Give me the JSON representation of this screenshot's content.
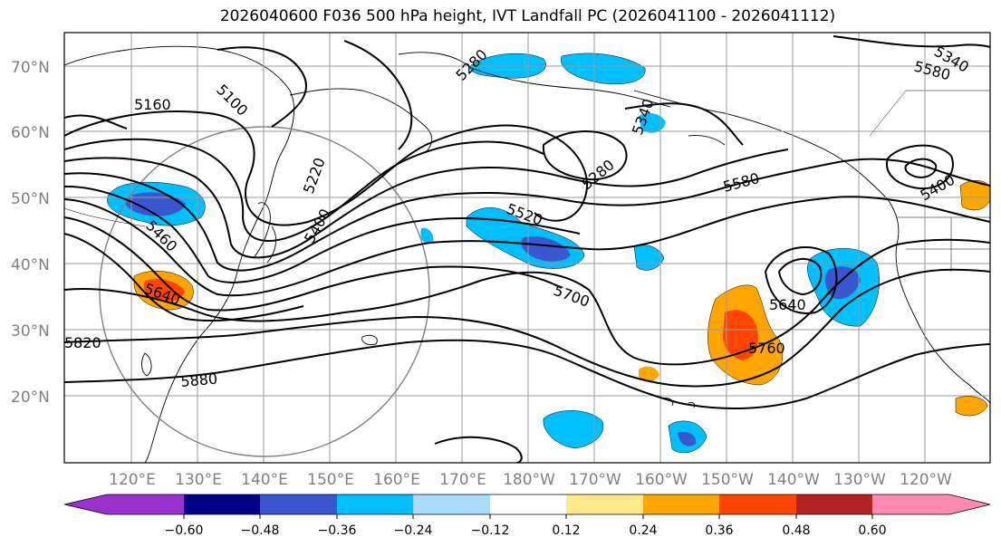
{
  "title": "2026040600 F036 500 hPa height, IVT Landfall PC (2026041100 - 2026041112)",
  "map": {
    "lat_labels": [
      "70°N",
      "60°N",
      "50°N",
      "40°N",
      "30°N",
      "20°N"
    ],
    "lon_labels": [
      "120°E",
      "130°E",
      "140°E",
      "150°E",
      "160°E",
      "170°E",
      "180°W",
      "170°W",
      "160°W",
      "150°W",
      "140°W",
      "130°W",
      "120°W"
    ],
    "contour_labels": [
      "5160",
      "5100",
      "5280",
      "5220",
      "5400",
      "5460",
      "5640",
      "5820",
      "5880",
      "5520",
      "5700",
      "5280",
      "5340",
      "5580",
      "5400",
      "5640",
      "5760",
      "5340",
      "5580"
    ],
    "shading_colors": {
      "strong_negative": "#3a57cf",
      "negative": "#00bfff",
      "weak_negative": "#aadcff",
      "weak_positive": "#ffe98a",
      "positive": "#ffa500",
      "strong_positive": "#ff4500"
    }
  },
  "colorbar": {
    "ticks": [
      "−0.60",
      "−0.48",
      "−0.36",
      "−0.24",
      "−0.12",
      "0.12",
      "0.24",
      "0.36",
      "0.48",
      "0.60"
    ],
    "colors": [
      "#9932cc",
      "#00008b",
      "#3a57cf",
      "#00bfff",
      "#aadcff",
      "#ffffff",
      "#ffe98a",
      "#ffa500",
      "#ff4500",
      "#b22222",
      "#ff89b0"
    ]
  }
}
